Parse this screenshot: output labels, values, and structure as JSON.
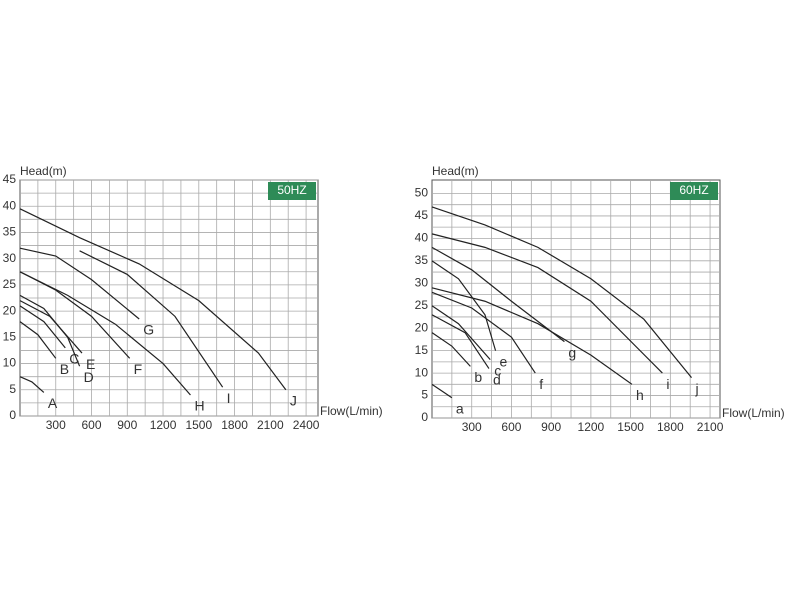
{
  "chart_data": [
    {
      "type": "line",
      "badge": "50HZ",
      "y_label": "Head(m)",
      "x_label": "Flow(L/min)",
      "color": "#222222",
      "grid": true,
      "xlim": [
        0,
        2500
      ],
      "ylim": [
        0,
        45
      ],
      "xticks": [
        300,
        600,
        900,
        1200,
        1500,
        1800,
        2100,
        2400
      ],
      "yticks": [
        0,
        5,
        10,
        15,
        20,
        25,
        30,
        35,
        40,
        45
      ],
      "series": [
        {
          "name": "A",
          "x": [
            0,
            100,
            200
          ],
          "values": [
            7.5,
            6.5,
            4.5
          ]
        },
        {
          "name": "B",
          "x": [
            0,
            150,
            300
          ],
          "values": [
            18,
            15.5,
            11
          ]
        },
        {
          "name": "C",
          "x": [
            0,
            200,
            380
          ],
          "values": [
            21,
            18,
            13
          ]
        },
        {
          "name": "D",
          "x": [
            0,
            200,
            400,
            500
          ],
          "values": [
            23,
            20.5,
            15,
            9.5
          ]
        },
        {
          "name": "E",
          "x": [
            0,
            250,
            520
          ],
          "values": [
            22,
            19,
            12
          ]
        },
        {
          "name": "F",
          "x": [
            0,
            300,
            600,
            920
          ],
          "values": [
            27.5,
            24,
            19,
            11
          ]
        },
        {
          "name": "G",
          "x": [
            0,
            300,
            600,
            1000
          ],
          "values": [
            32,
            30.5,
            26,
            18.5
          ]
        },
        {
          "name": "H",
          "x": [
            0,
            400,
            800,
            1200,
            1430
          ],
          "values": [
            27.5,
            23,
            17.5,
            10,
            4
          ]
        },
        {
          "name": "I",
          "x": [
            500,
            900,
            1300,
            1700
          ],
          "values": [
            31.5,
            27,
            19,
            5.5
          ]
        },
        {
          "name": "J",
          "x": [
            0,
            500,
            1000,
            1500,
            2000,
            2230
          ],
          "values": [
            39.5,
            34,
            29,
            22,
            12,
            5
          ]
        }
      ]
    },
    {
      "type": "line",
      "badge": "60HZ",
      "y_label": "Head(m)",
      "x_label": "Flow(L/min)",
      "color": "#222222",
      "grid": true,
      "xlim": [
        0,
        2175
      ],
      "ylim": [
        0,
        53
      ],
      "xticks": [
        300,
        600,
        900,
        1200,
        1500,
        1800,
        2100
      ],
      "yticks": [
        0,
        5,
        10,
        15,
        20,
        25,
        30,
        35,
        40,
        45,
        50
      ],
      "series": [
        {
          "name": "a",
          "x": [
            0,
            100,
            150
          ],
          "values": [
            7.5,
            5.5,
            4.5
          ]
        },
        {
          "name": "b",
          "x": [
            0,
            150,
            290
          ],
          "values": [
            19,
            16,
            11.5
          ]
        },
        {
          "name": "c",
          "x": [
            0,
            200,
            440
          ],
          "values": [
            25,
            21,
            13
          ]
        },
        {
          "name": "d",
          "x": [
            0,
            250,
            430
          ],
          "values": [
            23,
            19,
            11
          ]
        },
        {
          "name": "e",
          "x": [
            0,
            200,
            400,
            480
          ],
          "values": [
            35,
            31,
            23,
            15
          ]
        },
        {
          "name": "f",
          "x": [
            0,
            300,
            600,
            780
          ],
          "values": [
            28,
            24.5,
            18,
            10
          ]
        },
        {
          "name": "g",
          "x": [
            0,
            300,
            600,
            1000
          ],
          "values": [
            38,
            33,
            26,
            17
          ]
        },
        {
          "name": "h",
          "x": [
            0,
            400,
            800,
            1200,
            1510
          ],
          "values": [
            29,
            26,
            21,
            14,
            7.5
          ]
        },
        {
          "name": "i",
          "x": [
            0,
            400,
            800,
            1200,
            1740
          ],
          "values": [
            41,
            38,
            33.5,
            26,
            10
          ]
        },
        {
          "name": "j",
          "x": [
            0,
            400,
            800,
            1200,
            1600,
            1960
          ],
          "values": [
            47,
            43,
            38,
            31,
            22,
            9
          ]
        }
      ]
    }
  ]
}
